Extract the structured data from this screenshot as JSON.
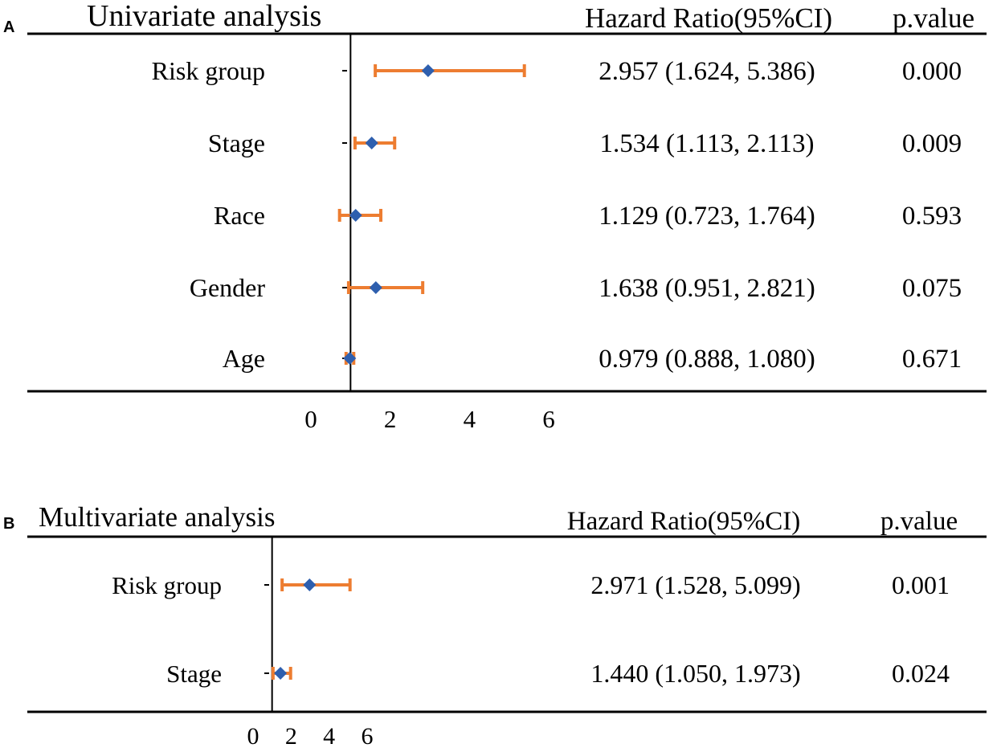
{
  "chart_data": [
    {
      "type": "forest",
      "panel_label": "A",
      "title": "Univariate analysis",
      "column_headers": {
        "ci": "Hazard Ratio(95%CI)",
        "p": "p.value"
      },
      "xlim": [
        0,
        6
      ],
      "ticks": [
        "0",
        "2",
        "4",
        "6"
      ],
      "reference_line": 1,
      "rows": [
        {
          "label": "Risk group",
          "hr": 2.957,
          "lo": 1.624,
          "hi": 5.386,
          "ci_text": "2.957 (1.624, 5.386)",
          "p": "0.000"
        },
        {
          "label": "Stage",
          "hr": 1.534,
          "lo": 1.113,
          "hi": 2.113,
          "ci_text": "1.534 (1.113, 2.113)",
          "p": "0.009"
        },
        {
          "label": "Race",
          "hr": 1.129,
          "lo": 0.723,
          "hi": 1.764,
          "ci_text": "1.129 (0.723, 1.764)",
          "p": "0.593"
        },
        {
          "label": "Gender",
          "hr": 1.638,
          "lo": 0.951,
          "hi": 2.821,
          "ci_text": "1.638 (0.951, 2.821)",
          "p": "0.075"
        },
        {
          "label": "Age",
          "hr": 0.979,
          "lo": 0.888,
          "hi": 1.08,
          "ci_text": "0.979 (0.888, 1.080)",
          "p": "0.671"
        }
      ]
    },
    {
      "type": "forest",
      "panel_label": "B",
      "title": "Multivariate analysis",
      "column_headers": {
        "ci": "Hazard Ratio(95%CI)",
        "p": "p.value"
      },
      "xlim": [
        0,
        6
      ],
      "ticks": [
        "0",
        "2",
        "4",
        "6"
      ],
      "reference_line": 1,
      "rows": [
        {
          "label": "Risk group",
          "hr": 2.971,
          "lo": 1.528,
          "hi": 5.099,
          "ci_text": "2.971 (1.528, 5.099)",
          "p": "0.001"
        },
        {
          "label": "Stage",
          "hr": 1.44,
          "lo": 1.05,
          "hi": 1.973,
          "ci_text": "1.440 (1.050, 1.973)",
          "p": "0.024"
        }
      ]
    }
  ],
  "colors": {
    "ci": "#ed7d31",
    "point": "#2e5fae",
    "axis": "#000000"
  }
}
